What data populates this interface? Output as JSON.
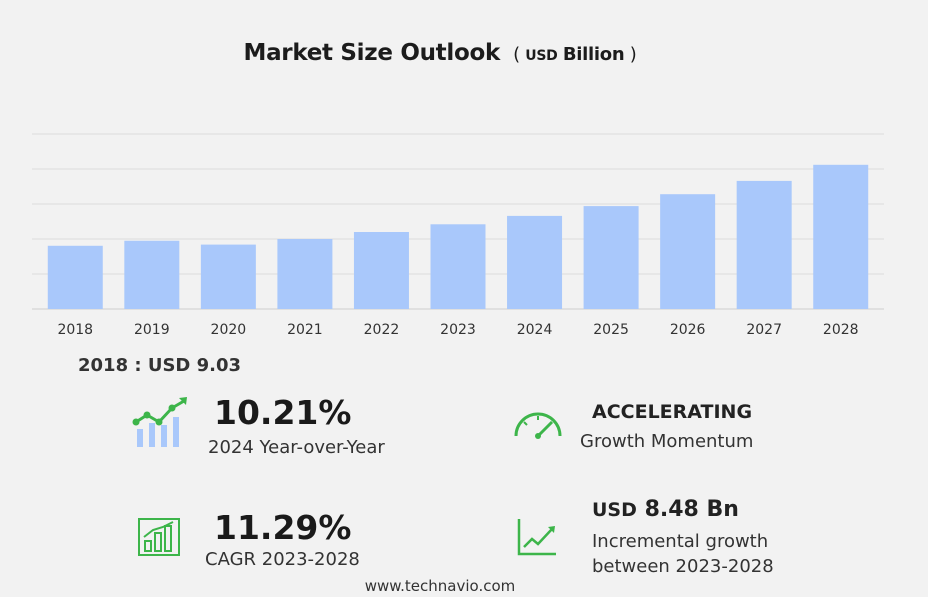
{
  "chart_data": {
    "type": "bar",
    "title": "Market Size Outlook",
    "unit_prefix": "USD",
    "unit_suffix": "Billion",
    "categories": [
      "2018",
      "2019",
      "2020",
      "2021",
      "2022",
      "2023",
      "2024",
      "2025",
      "2026",
      "2027",
      "2028"
    ],
    "values": [
      9.03,
      9.75,
      9.2,
      10.0,
      11.0,
      12.1,
      13.3,
      14.7,
      16.4,
      18.3,
      20.6
    ],
    "ylim": [
      0,
      25
    ],
    "grid": true,
    "bar_color": "#a9c8fb"
  },
  "base": {
    "label": "2018 : USD  9.03"
  },
  "kpis": {
    "yoy": {
      "value": "10.21%",
      "label": "2024 Year-over-Year"
    },
    "momentum": {
      "value": "ACCELERATING",
      "label": "Growth Momentum"
    },
    "cagr": {
      "value": "11.29%",
      "label": "CAGR 2023-2028"
    },
    "incremental": {
      "prefix": "USD",
      "value": "8.48 Bn",
      "label_line1": "Incremental growth",
      "label_line2": "between 2023-2028"
    }
  },
  "colors": {
    "accent_green": "#3db54a",
    "icon_blue": "#a9c8fb"
  },
  "icons": {
    "yoy": "trend-bars-icon",
    "momentum": "speedometer-icon",
    "cagr": "bar-chart-icon",
    "incremental": "line-chart-icon"
  },
  "footer": "www.technavio.com"
}
